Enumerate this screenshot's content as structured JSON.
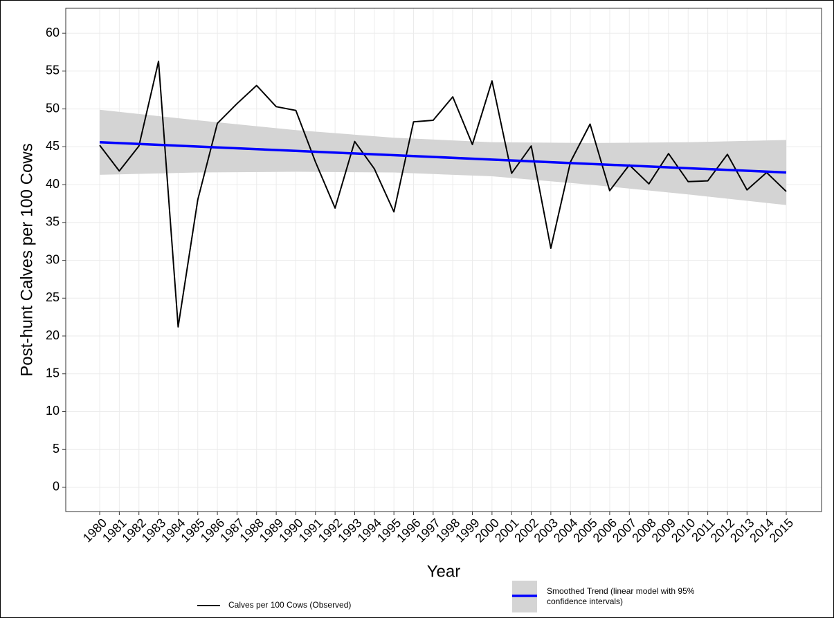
{
  "chart_data": {
    "type": "line",
    "xlabel": "Year",
    "ylabel": "Post-hunt Calves per 100 Cows",
    "xlim": [
      1978.27,
      2016.8
    ],
    "ylim": [
      -3.2,
      63.3
    ],
    "xticks": [
      1980,
      1981,
      1982,
      1983,
      1984,
      1985,
      1986,
      1987,
      1988,
      1989,
      1990,
      1991,
      1992,
      1993,
      1994,
      1995,
      1996,
      1997,
      1998,
      1999,
      2000,
      2001,
      2002,
      2003,
      2004,
      2005,
      2006,
      2007,
      2008,
      2009,
      2010,
      2011,
      2012,
      2013,
      2014,
      2015
    ],
    "yticks": [
      0,
      5,
      10,
      15,
      20,
      25,
      30,
      35,
      40,
      45,
      50,
      55,
      60
    ],
    "grid": true,
    "legend": "bottom",
    "series": [
      {
        "name": "Calves per 100 Cows (Observed)",
        "color": "#000000",
        "x": [
          1980,
          1981,
          1982,
          1983,
          1984,
          1985,
          1986,
          1987,
          1988,
          1989,
          1990,
          1991,
          1992,
          1993,
          1994,
          1995,
          1996,
          1997,
          1998,
          1999,
          2000,
          2001,
          2002,
          2003,
          2004,
          2005,
          2006,
          2007,
          2008,
          2009,
          2010,
          2011,
          2012,
          2013,
          2014,
          2015
        ],
        "values": [
          45.2,
          41.8,
          45.1,
          56.3,
          21.2,
          38.0,
          48.1,
          50.7,
          53.1,
          50.3,
          49.8,
          43.0,
          36.9,
          45.7,
          42.1,
          36.4,
          48.3,
          48.5,
          51.6,
          45.3,
          53.7,
          41.5,
          45.1,
          31.6,
          43.0,
          48.0,
          39.2,
          42.6,
          40.1,
          44.1,
          40.4,
          40.5,
          44.0,
          39.3,
          41.6,
          39.1
        ]
      },
      {
        "name": "Smoothed Trend (linear model with 95% confidence intervals)",
        "color": "#0000ff",
        "band_color": "#d4d4d4",
        "x": [
          1980,
          1985,
          1990,
          1995,
          2000,
          2005,
          2010,
          2015
        ],
        "values": [
          45.6,
          45.03,
          44.46,
          43.89,
          43.31,
          42.74,
          42.17,
          41.6
        ],
        "lower": [
          41.3,
          41.6,
          41.7,
          41.6,
          41.1,
          40.0,
          38.7,
          37.3
        ],
        "upper": [
          49.9,
          48.5,
          47.2,
          46.2,
          45.6,
          45.5,
          45.6,
          45.9
        ]
      }
    ]
  }
}
